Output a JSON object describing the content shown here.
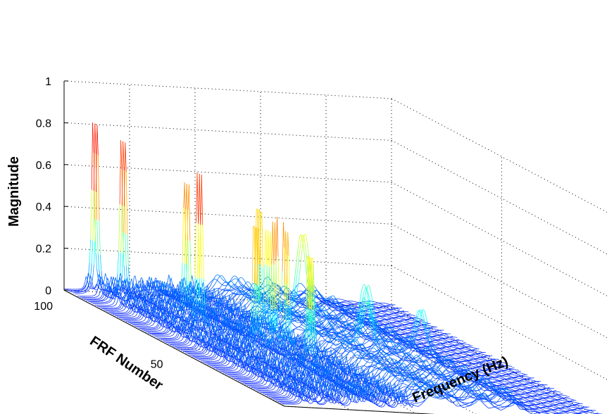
{
  "chart_data": {
    "type": "waterfall-3d",
    "xlabel": "Frequency (Hz)",
    "ylabel": "FRF Number",
    "zlabel": "Magnitude",
    "xlim": [
      0,
      25
    ],
    "ylim": [
      0,
      100
    ],
    "zlim": [
      0,
      1
    ],
    "xticks": [
      "0",
      "5",
      "10",
      "15",
      "20",
      "25"
    ],
    "yticks": [
      "0",
      "50",
      "100"
    ],
    "zticks": [
      "0",
      "0.2",
      "0.4",
      "0.6",
      "0.8",
      "1"
    ],
    "grid": true,
    "colormap": "jet",
    "series_count": 100,
    "peaks": [
      {
        "frequency": 1.7,
        "frf": 96,
        "magnitude": 0.84
      },
      {
        "frequency": 2.5,
        "frf": 88,
        "magnitude": 0.8
      },
      {
        "frequency": 3.6,
        "frf": 60,
        "magnitude": 0.78
      },
      {
        "frequency": 4.3,
        "frf": 70,
        "magnitude": 0.7
      },
      {
        "frequency": 5.4,
        "frf": 45,
        "magnitude": 0.68
      },
      {
        "frequency": 6.0,
        "frf": 40,
        "magnitude": 0.66
      },
      {
        "frequency": 6.5,
        "frf": 38,
        "magnitude": 0.65
      },
      {
        "frequency": 7.0,
        "frf": 30,
        "magnitude": 0.62
      },
      {
        "frequency": 8.0,
        "frf": 55,
        "magnitude": 0.55
      },
      {
        "frequency": 9.0,
        "frf": 65,
        "magnitude": 0.66
      },
      {
        "frequency": 9.6,
        "frf": 45,
        "magnitude": 0.45
      },
      {
        "frequency": 11.5,
        "frf": 60,
        "magnitude": 0.5
      },
      {
        "frequency": 13.0,
        "frf": 40,
        "magnitude": 0.3
      },
      {
        "frequency": 15.5,
        "frf": 55,
        "magnitude": 0.3
      },
      {
        "frequency": 18.0,
        "frf": 45,
        "magnitude": 0.25
      }
    ]
  }
}
